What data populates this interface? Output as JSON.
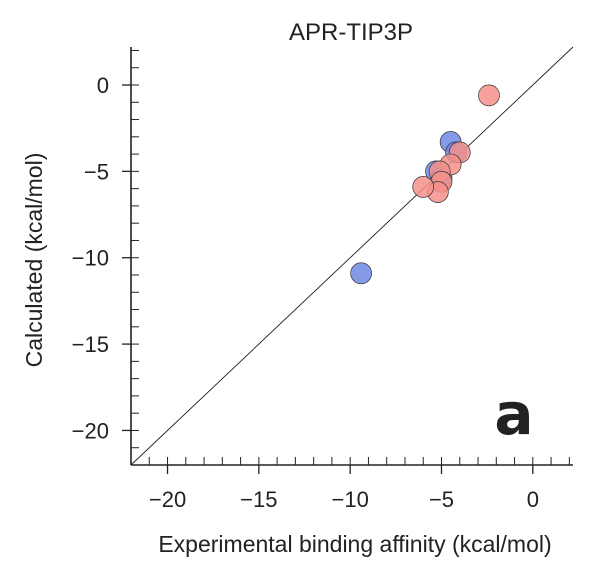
{
  "chart_data": {
    "type": "scatter",
    "title": "APR-TIP3P",
    "xlabel": "Experimental binding affinity (kcal/mol)",
    "ylabel": "Calculated (kcal/mol)",
    "panel_label": "a",
    "xlim": [
      -22,
      2.2
    ],
    "ylim": [
      -22,
      2.2
    ],
    "x_ticks": [
      -20,
      -15,
      -10,
      -5,
      0
    ],
    "y_ticks": [
      0,
      -5,
      -10,
      -15,
      -20
    ],
    "x_tick_labels": [
      "−20",
      "−15",
      "−10",
      "−5",
      "0"
    ],
    "y_tick_labels": [
      "0",
      "−5",
      "−10",
      "−15",
      "−20"
    ],
    "minor_tick_step": 1,
    "diagonal": true,
    "grid": false,
    "series": [
      {
        "color": "#6f88e3",
        "points": [
          {
            "x": -9.4,
            "y": -10.9
          },
          {
            "x": -4.5,
            "y": -3.3
          },
          {
            "x": -4.2,
            "y": -3.9
          },
          {
            "x": -5.3,
            "y": -5.0
          },
          {
            "x": -5.0,
            "y": -5.4
          }
        ]
      },
      {
        "color": "#f4918a",
        "points": [
          {
            "x": -2.4,
            "y": -0.6
          },
          {
            "x": -4.0,
            "y": -3.9
          },
          {
            "x": -4.5,
            "y": -4.6
          },
          {
            "x": -5.1,
            "y": -5.0
          },
          {
            "x": -5.0,
            "y": -5.6
          },
          {
            "x": -5.2,
            "y": -6.2
          },
          {
            "x": -6.0,
            "y": -5.9
          }
        ]
      }
    ]
  }
}
